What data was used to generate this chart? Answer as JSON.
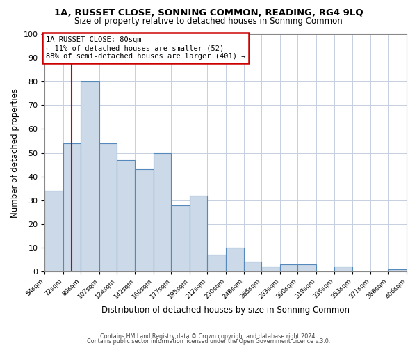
{
  "title": "1A, RUSSET CLOSE, SONNING COMMON, READING, RG4 9LQ",
  "subtitle": "Size of property relative to detached houses in Sonning Common",
  "xlabel": "Distribution of detached houses by size in Sonning Common",
  "ylabel": "Number of detached properties",
  "bar_edges": [
    54,
    72,
    89,
    107,
    124,
    142,
    160,
    177,
    195,
    212,
    230,
    248,
    265,
    283,
    300,
    318,
    336,
    353,
    371,
    388,
    406
  ],
  "bar_heights": [
    34,
    54,
    80,
    54,
    47,
    43,
    50,
    28,
    32,
    7,
    10,
    4,
    2,
    3,
    3,
    0,
    2,
    0,
    0,
    1
  ],
  "bar_color": "#ccd9e8",
  "bar_edge_color": "#5588bb",
  "grid_color": "#c5cfe0",
  "vline_x": 80,
  "vline_color": "#cc0000",
  "annotation_title": "1A RUSSET CLOSE: 80sqm",
  "annotation_line1": "← 11% of detached houses are smaller (52)",
  "annotation_line2": "88% of semi-detached houses are larger (401) →",
  "annotation_box_color": "#cc0000",
  "ylim": [
    0,
    100
  ],
  "footer1": "Contains HM Land Registry data © Crown copyright and database right 2024.",
  "footer2": "Contains public sector information licensed under the Open Government Licence v.3.0.",
  "tick_labels": [
    "54sqm",
    "72sqm",
    "89sqm",
    "107sqm",
    "124sqm",
    "142sqm",
    "160sqm",
    "177sqm",
    "195sqm",
    "212sqm",
    "230sqm",
    "248sqm",
    "265sqm",
    "283sqm",
    "300sqm",
    "318sqm",
    "336sqm",
    "353sqm",
    "371sqm",
    "388sqm",
    "406sqm"
  ]
}
